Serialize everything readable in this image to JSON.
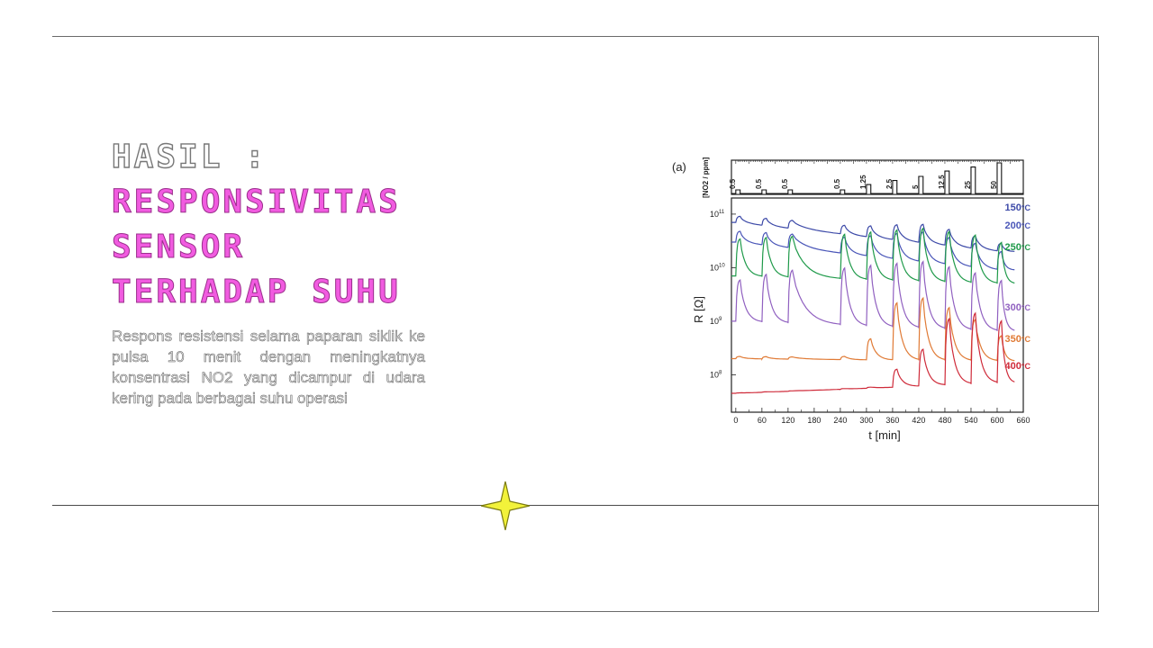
{
  "slide": {
    "title_line1": "HASIL :",
    "title_lines": [
      "RESPONSIVITAS",
      "SENSOR",
      "TERHADAP SUHU"
    ],
    "body": "Respons resistensi selama paparan siklik ke pulsa 10 menit dengan meningkatnya konsentrasi NO2 yang dicampur di udara kering pada berbagai suhu operasi",
    "accent_pink": "#f15be0",
    "sparkle_color": "#f2f23a",
    "sparkle_icon": "sparkle-icon"
  },
  "chart_data": {
    "type": "line",
    "panel_label": "(a)",
    "xlabel": "t [min]",
    "ylabel": "R [Ω]",
    "top_ylabel": "[NO2 / ppm]",
    "xlim": [
      -10,
      660
    ],
    "x_ticks": [
      0,
      60,
      120,
      180,
      240,
      300,
      360,
      420,
      480,
      540,
      600,
      660
    ],
    "y_scale": "log",
    "ylim": [
      20000000,
      200000000000
    ],
    "y_ticks": [
      {
        "value": 100000000000,
        "base": "10",
        "exp": "11"
      },
      {
        "value": 10000000000,
        "base": "10",
        "exp": "10"
      },
      {
        "value": 1000000000,
        "base": "10",
        "exp": "9"
      },
      {
        "value": 100000000,
        "base": "10",
        "exp": "8"
      }
    ],
    "pulses": [
      {
        "start": 0,
        "ppm": 0.5,
        "label": "0.5"
      },
      {
        "start": 60,
        "ppm": 0.5,
        "label": "0.5"
      },
      {
        "start": 120,
        "ppm": 0.5,
        "label": "0.5"
      },
      {
        "start": 240,
        "ppm": 0.5,
        "label": "0.5"
      },
      {
        "start": 300,
        "ppm": 1.25,
        "label": "1.25"
      },
      {
        "start": 360,
        "ppm": 2.5,
        "label": "2.5"
      },
      {
        "start": 420,
        "ppm": 5,
        "label": "5"
      },
      {
        "start": 480,
        "ppm": 12.5,
        "label": "12.5"
      },
      {
        "start": 540,
        "ppm": 25,
        "label": "25"
      },
      {
        "start": 600,
        "ppm": 50,
        "label": "50"
      }
    ],
    "series": [
      {
        "name": "150°C",
        "label_base": "150",
        "label_unit": "°C",
        "color": "#3d4aa8",
        "base": 70000000000,
        "end": 20000000000,
        "peaks": [
          1.3,
          1.35,
          1.4,
          1.45,
          1.6,
          1.9,
          2.2,
          2.0,
          1.7,
          1.4
        ]
      },
      {
        "name": "200°C",
        "label_base": "200",
        "label_unit": "°C",
        "color": "#4a56b8",
        "base": 30000000000,
        "end": 9000000000,
        "peaks": [
          1.6,
          1.7,
          1.8,
          2.0,
          2.4,
          3.0,
          3.6,
          3.2,
          2.8,
          2.2
        ]
      },
      {
        "name": "250°C",
        "label_base": "250",
        "label_unit": "°C",
        "color": "#1f9a4a",
        "base": 7000000000,
        "end": 5000000000,
        "peaks": [
          5,
          5.5,
          6,
          7,
          8,
          9,
          10,
          9,
          8,
          6
        ]
      },
      {
        "name": "300°C",
        "label_base": "300",
        "label_unit": "°C",
        "color": "#9060c0",
        "base": 1000000000,
        "end": 650000000,
        "peaks": [
          6,
          8,
          10,
          12,
          14,
          16,
          18,
          15,
          12,
          9
        ]
      },
      {
        "name": "350°C",
        "label_base": "350",
        "label_unit": "°C",
        "color": "#e07a35",
        "base": 200000000,
        "end": 180000000,
        "peaks": [
          1.1,
          1.1,
          1.1,
          1.15,
          2.5,
          12,
          15,
          10,
          6,
          3
        ]
      },
      {
        "name": "400°C",
        "label_base": "400",
        "label_unit": "°C",
        "color": "#cf2b3a",
        "base": 45000000,
        "end": 70000000,
        "peaks": [
          1.02,
          1.02,
          1.02,
          1.03,
          1.05,
          2.2,
          5,
          18,
          22,
          15
        ]
      }
    ]
  }
}
